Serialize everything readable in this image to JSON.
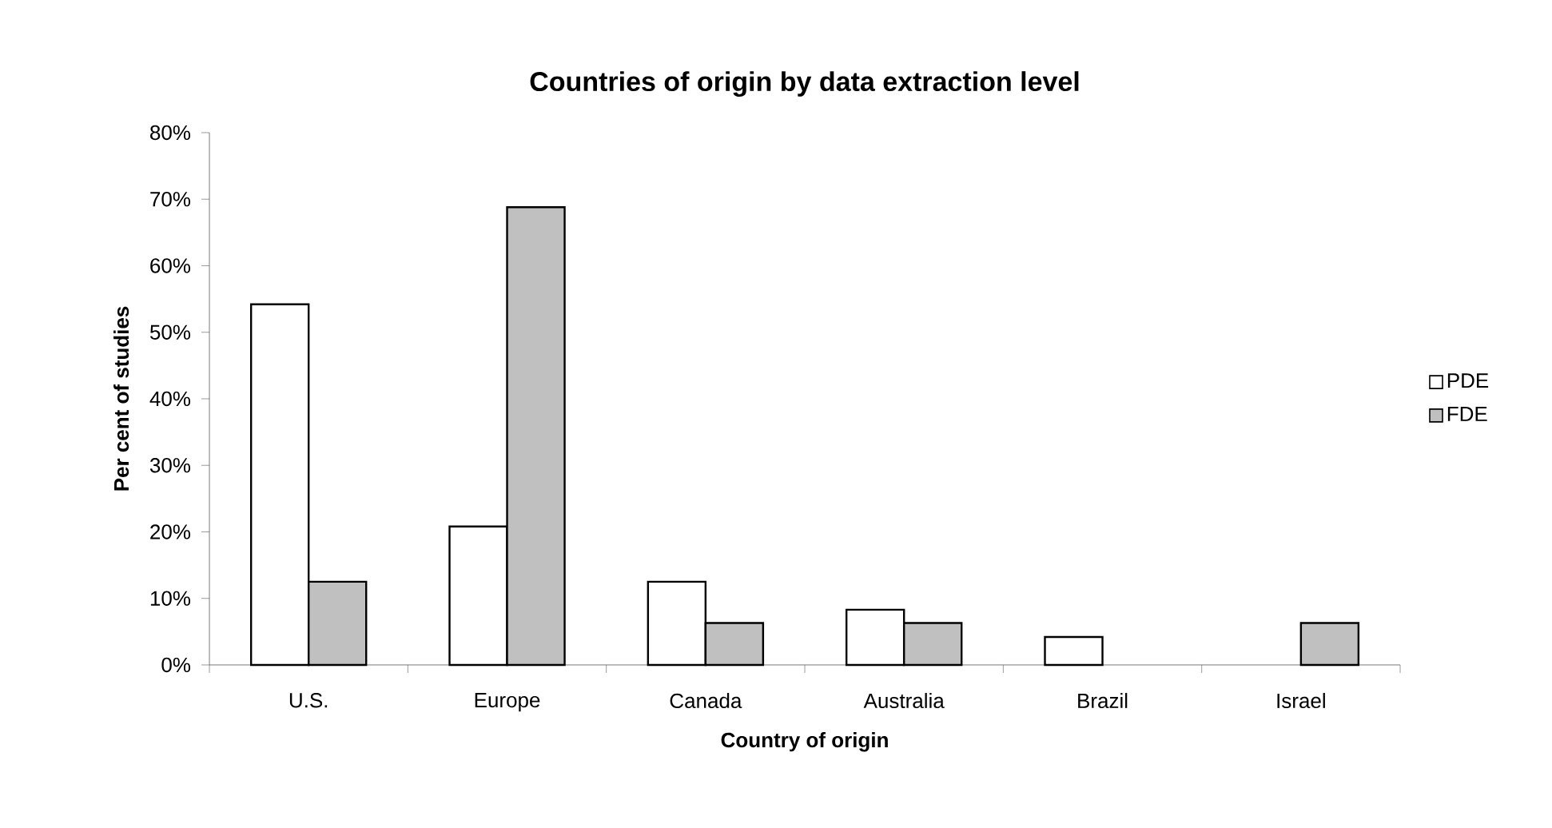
{
  "chart_data": {
    "type": "bar",
    "title": "Countries of origin by data extraction level",
    "xlabel": "Country of origin",
    "ylabel": "Per cent of studies",
    "categories": [
      "U.S.",
      "Europe",
      "Canada",
      "Australia",
      "Brazil",
      "Israel"
    ],
    "series": [
      {
        "name": "PDE",
        "color": "#ffffff",
        "values": [
          54.2,
          20.8,
          12.5,
          8.3,
          4.2,
          null
        ]
      },
      {
        "name": "FDE",
        "color": "#c0c0c0",
        "values": [
          12.5,
          68.8,
          6.3,
          6.3,
          null,
          6.3
        ]
      }
    ],
    "ylim": [
      0,
      80
    ],
    "yticks": [
      {
        "value": 0,
        "label": "0%"
      },
      {
        "value": 10,
        "label": "10%"
      },
      {
        "value": 20,
        "label": "20%"
      },
      {
        "value": 30,
        "label": "30%"
      },
      {
        "value": 40,
        "label": "40%"
      },
      {
        "value": 50,
        "label": "50%"
      },
      {
        "value": 60,
        "label": "60%"
      },
      {
        "value": 70,
        "label": "70%"
      },
      {
        "value": 80,
        "label": "80%"
      }
    ],
    "grid": false,
    "legend": "right"
  }
}
